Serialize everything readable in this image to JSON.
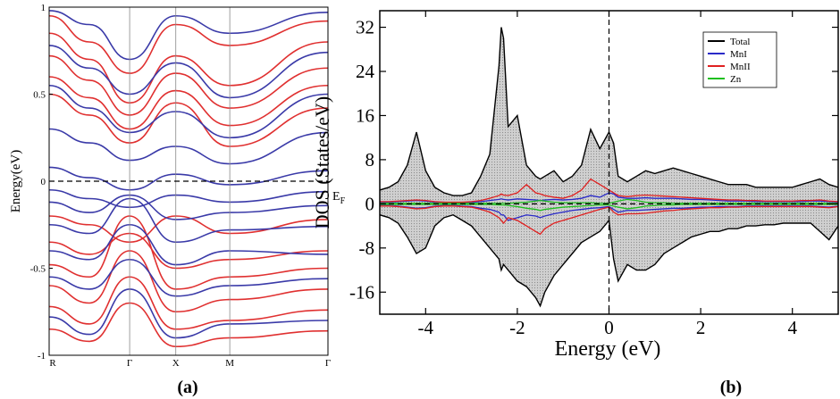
{
  "panels": {
    "a_label": "(a)",
    "b_label": "(b)"
  },
  "chart_data": [
    {
      "type": "line",
      "panel": "a",
      "title": "",
      "xlabel": "",
      "ylabel": "Energy(eV)",
      "ylim": [
        -1,
        1
      ],
      "k_points": [
        "R",
        "Γ",
        "X",
        "M",
        "Γ"
      ],
      "k_positions": [
        0,
        0.41,
        0.645,
        0.92,
        1.42
      ],
      "yticks": [
        -1,
        -0.5,
        0,
        0.5,
        1
      ],
      "ytick_labels": [
        "-1",
        "-0.5",
        "0",
        "0.5",
        "1"
      ],
      "fermi_level": 0,
      "fermi_label": "E",
      "fermi_label_sub": "F",
      "grid": false,
      "series": [
        {
          "color": "#e03030",
          "bands": [
            [
              0.95,
              0.8,
              0.62,
              0.9,
              0.78,
              0.92
            ],
            [
              0.85,
              0.7,
              0.45,
              0.72,
              0.55,
              0.8
            ],
            [
              0.72,
              0.58,
              0.38,
              0.62,
              0.42,
              0.65
            ],
            [
              0.6,
              0.48,
              0.3,
              0.52,
              0.32,
              0.55
            ],
            [
              0.5,
              0.38,
              0.22,
              0.45,
              0.2,
              0.42
            ],
            [
              -0.2,
              -0.25,
              -0.35,
              -0.2,
              -0.3,
              -0.22
            ],
            [
              -0.35,
              -0.42,
              -0.3,
              -0.5,
              -0.45,
              -0.4
            ],
            [
              -0.48,
              -0.55,
              -0.2,
              -0.62,
              -0.55,
              -0.5
            ],
            [
              -0.6,
              -0.7,
              -0.4,
              -0.75,
              -0.68,
              -0.62
            ],
            [
              -0.72,
              -0.82,
              -0.55,
              -0.85,
              -0.8,
              -0.74
            ],
            [
              -0.85,
              -0.92,
              -0.7,
              -0.95,
              -0.9,
              -0.86
            ]
          ]
        },
        {
          "color": "#3a3aa8",
          "bands": [
            [
              0.98,
              0.9,
              0.7,
              0.95,
              0.85,
              0.97
            ],
            [
              0.78,
              0.65,
              0.5,
              0.68,
              0.48,
              0.74
            ],
            [
              0.55,
              0.42,
              0.28,
              0.4,
              0.25,
              0.5
            ],
            [
              0.3,
              0.22,
              0.12,
              0.2,
              0.1,
              0.28
            ],
            [
              0.08,
              0.02,
              -0.05,
              0.04,
              -0.02,
              0.06
            ],
            [
              -0.05,
              -0.1,
              -0.15,
              -0.08,
              -0.12,
              -0.06
            ],
            [
              -0.12,
              -0.18,
              -0.08,
              -0.22,
              -0.18,
              -0.14
            ],
            [
              -0.25,
              -0.3,
              -0.1,
              -0.35,
              -0.28,
              -0.26
            ],
            [
              -0.4,
              -0.45,
              -0.25,
              -0.48,
              -0.4,
              -0.42
            ],
            [
              -0.55,
              -0.62,
              -0.45,
              -0.66,
              -0.6,
              -0.56
            ],
            [
              -0.78,
              -0.88,
              -0.62,
              -0.9,
              -0.82,
              -0.8
            ]
          ]
        }
      ]
    },
    {
      "type": "area",
      "panel": "b",
      "title": "",
      "xlabel": "Energy (eV)",
      "ylabel": "DOS (States/eV)",
      "xlim": [
        -5,
        5
      ],
      "ylim": [
        -20,
        35
      ],
      "xticks": [
        -4,
        -2,
        0,
        2,
        4
      ],
      "yticks": [
        -16,
        -8,
        0,
        8,
        16,
        24,
        32
      ],
      "fermi_level": 0,
      "grid": false,
      "legend": "top-right",
      "x": [
        -5.0,
        -4.8,
        -4.6,
        -4.4,
        -4.2,
        -4.0,
        -3.8,
        -3.6,
        -3.4,
        -3.2,
        -3.0,
        -2.8,
        -2.6,
        -2.4,
        -2.35,
        -2.3,
        -2.2,
        -2.0,
        -1.8,
        -1.6,
        -1.5,
        -1.4,
        -1.2,
        -1.0,
        -0.8,
        -0.6,
        -0.4,
        -0.2,
        0.0,
        0.1,
        0.2,
        0.4,
        0.6,
        0.8,
        1.0,
        1.2,
        1.4,
        1.6,
        1.8,
        2.0,
        2.2,
        2.4,
        2.6,
        2.8,
        3.0,
        3.2,
        3.4,
        3.6,
        3.8,
        4.0,
        4.2,
        4.4,
        4.6,
        4.8,
        5.0
      ],
      "series": [
        {
          "name": "Total",
          "color": "#000000",
          "up": [
            2.5,
            3.0,
            4.0,
            7.0,
            13.0,
            6.0,
            3.0,
            2.0,
            1.5,
            1.5,
            2.0,
            5.0,
            9.0,
            25.0,
            32.0,
            30.0,
            14.0,
            16.0,
            7.0,
            5.0,
            4.5,
            5.0,
            6.0,
            4.0,
            5.0,
            7.0,
            13.5,
            10.0,
            13.0,
            11.0,
            5.0,
            4.0,
            5.0,
            6.0,
            5.5,
            6.0,
            6.5,
            6.0,
            5.5,
            5.0,
            4.5,
            4.0,
            3.5,
            3.5,
            3.5,
            3.0,
            3.0,
            3.0,
            3.0,
            3.0,
            3.5,
            4.0,
            4.5,
            3.5,
            3.0
          ],
          "down": [
            -2.0,
            -2.5,
            -3.5,
            -6.0,
            -9.0,
            -8.0,
            -4.0,
            -2.5,
            -2.0,
            -3.0,
            -4.0,
            -6.0,
            -8.0,
            -10.0,
            -12.0,
            -11.0,
            -12.0,
            -14.0,
            -15.0,
            -17.0,
            -18.5,
            -16.0,
            -13.0,
            -11.0,
            -9.0,
            -7.0,
            -6.0,
            -5.0,
            -3.0,
            -10.0,
            -14.0,
            -11.0,
            -12.0,
            -12.0,
            -11.0,
            -9.0,
            -8.0,
            -7.0,
            -6.0,
            -5.5,
            -5.0,
            -5.0,
            -4.5,
            -4.5,
            -4.0,
            -4.0,
            -3.8,
            -3.8,
            -3.5,
            -3.5,
            -3.5,
            -3.5,
            -5.0,
            -6.5,
            -4.0
          ]
        },
        {
          "name": "MnI",
          "color": "#2a2ac8",
          "up": [
            0.3,
            0.3,
            0.4,
            0.5,
            0.6,
            0.5,
            0.3,
            0.3,
            0.2,
            0.2,
            0.3,
            0.4,
            0.6,
            0.8,
            0.9,
            0.8,
            0.7,
            0.9,
            0.8,
            0.7,
            0.6,
            0.7,
            0.8,
            0.7,
            0.8,
            1.0,
            1.5,
            1.2,
            2.0,
            1.8,
            1.2,
            1.0,
            1.0,
            1.1,
            1.0,
            1.0,
            1.0,
            0.9,
            0.8,
            0.8,
            0.7,
            0.6,
            0.5,
            0.5,
            0.5,
            0.4,
            0.4,
            0.4,
            0.4,
            0.4,
            0.4,
            0.5,
            0.5,
            0.4,
            0.3
          ],
          "down": [
            -0.3,
            -0.3,
            -0.4,
            -0.6,
            -0.8,
            -0.7,
            -0.4,
            -0.3,
            -0.3,
            -0.4,
            -0.5,
            -0.8,
            -1.0,
            -1.5,
            -2.0,
            -2.0,
            -3.0,
            -2.5,
            -2.0,
            -2.2,
            -2.5,
            -2.2,
            -1.8,
            -1.5,
            -1.2,
            -1.0,
            -0.8,
            -0.7,
            -0.5,
            -1.0,
            -1.5,
            -1.2,
            -1.2,
            -1.1,
            -1.0,
            -0.9,
            -0.8,
            -0.8,
            -0.7,
            -0.6,
            -0.6,
            -0.5,
            -0.5,
            -0.5,
            -0.4,
            -0.4,
            -0.4,
            -0.4,
            -0.4,
            -0.4,
            -0.4,
            -0.4,
            -0.5,
            -0.6,
            -0.4
          ]
        },
        {
          "name": "MnII",
          "color": "#e02020",
          "up": [
            0.4,
            0.4,
            0.5,
            0.6,
            0.7,
            0.6,
            0.4,
            0.3,
            0.3,
            0.3,
            0.4,
            0.6,
            1.0,
            1.5,
            1.8,
            1.6,
            1.5,
            2.0,
            3.5,
            2.0,
            1.8,
            1.5,
            1.2,
            1.0,
            1.5,
            2.5,
            4.5,
            3.5,
            2.5,
            2.0,
            1.5,
            1.3,
            1.5,
            1.6,
            1.5,
            1.4,
            1.3,
            1.2,
            1.1,
            1.0,
            0.9,
            0.8,
            0.7,
            0.7,
            0.6,
            0.6,
            0.5,
            0.5,
            0.5,
            0.5,
            0.6,
            0.6,
            0.7,
            0.5,
            0.4
          ],
          "down": [
            -0.4,
            -0.4,
            -0.5,
            -0.7,
            -0.9,
            -0.8,
            -0.5,
            -0.4,
            -0.4,
            -0.5,
            -0.6,
            -1.0,
            -1.5,
            -2.5,
            -3.0,
            -3.5,
            -2.5,
            -3.0,
            -4.0,
            -5.0,
            -5.5,
            -4.5,
            -3.5,
            -3.0,
            -2.5,
            -2.0,
            -1.5,
            -1.0,
            -0.6,
            -1.5,
            -2.0,
            -1.8,
            -1.8,
            -1.7,
            -1.5,
            -1.3,
            -1.2,
            -1.0,
            -0.9,
            -0.8,
            -0.7,
            -0.7,
            -0.6,
            -0.6,
            -0.5,
            -0.5,
            -0.5,
            -0.5,
            -0.5,
            -0.5,
            -0.5,
            -0.5,
            -0.6,
            -0.7,
            -0.5
          ]
        },
        {
          "name": "Zn",
          "color": "#1fbf1f",
          "up": [
            0.1,
            0.1,
            0.1,
            0.1,
            0.1,
            0.1,
            0.1,
            0.1,
            0.1,
            0.1,
            0.1,
            0.1,
            0.1,
            0.1,
            0.1,
            0.1,
            0.1,
            0.2,
            0.3,
            0.5,
            0.6,
            0.5,
            0.3,
            0.2,
            0.2,
            0.2,
            0.2,
            0.1,
            0.1,
            0.3,
            0.5,
            0.8,
            0.6,
            0.3,
            0.2,
            0.2,
            0.1,
            0.1,
            0.1,
            0.1,
            0.1,
            0.1,
            0.1,
            0.1,
            0.1,
            0.1,
            0.1,
            0.1,
            0.1,
            0.1,
            0.1,
            0.1,
            0.1,
            0.1,
            0.1
          ],
          "down": [
            -0.1,
            -0.1,
            -0.1,
            -0.1,
            -0.1,
            -0.1,
            -0.1,
            -0.1,
            -0.1,
            -0.1,
            -0.1,
            -0.1,
            -0.1,
            -0.2,
            -0.2,
            -0.2,
            -0.3,
            -0.5,
            -0.8,
            -1.0,
            -1.2,
            -1.0,
            -0.8,
            -0.6,
            -0.5,
            -0.4,
            -0.3,
            -0.2,
            -0.2,
            -0.4,
            -0.6,
            -0.9,
            -0.7,
            -0.4,
            -0.3,
            -0.2,
            -0.2,
            -0.1,
            -0.1,
            -0.1,
            -0.1,
            -0.1,
            -0.1,
            -0.1,
            -0.1,
            -0.1,
            -0.1,
            -0.1,
            -0.1,
            -0.1,
            -0.1,
            -0.1,
            -0.1,
            -0.1,
            -0.1
          ]
        }
      ]
    }
  ]
}
